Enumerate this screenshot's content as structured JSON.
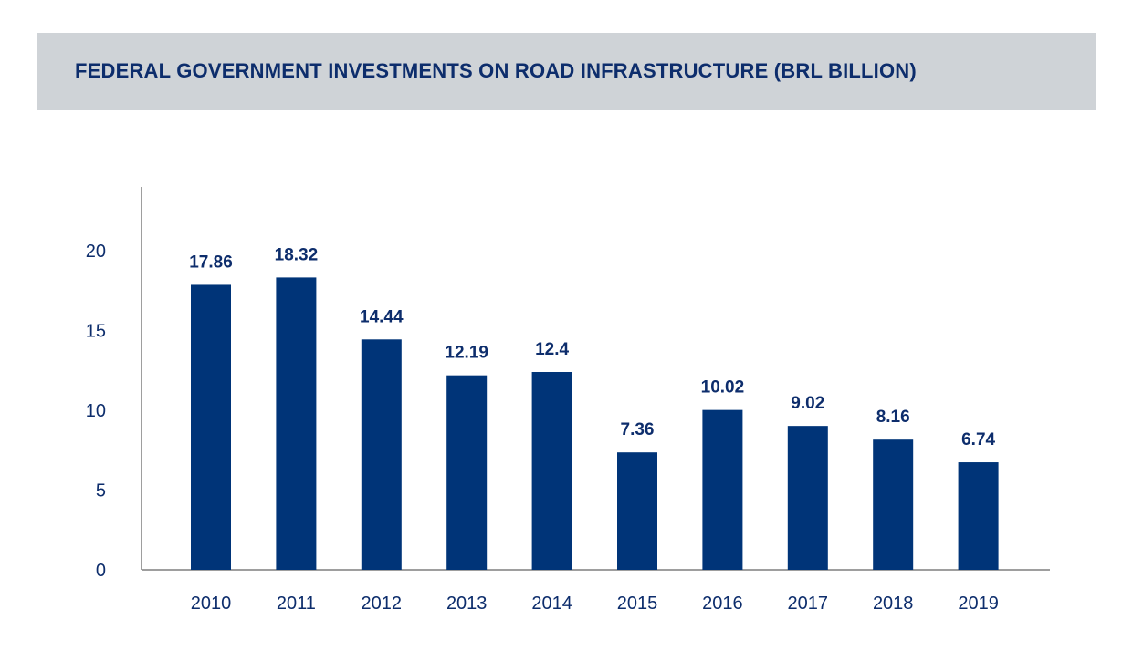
{
  "chart_data": {
    "type": "bar",
    "title": "FEDERAL GOVERNMENT INVESTMENTS ON ROAD INFRASTRUCTURE (BRL BILLION)",
    "xlabel": "",
    "ylabel": "",
    "categories": [
      "2010",
      "2011",
      "2012",
      "2013",
      "2014",
      "2015",
      "2016",
      "2017",
      "2018",
      "2019"
    ],
    "values": [
      17.86,
      18.32,
      14.44,
      12.19,
      12.4,
      7.36,
      10.02,
      9.02,
      8.16,
      6.74
    ],
    "value_labels": [
      "17.86",
      "18.32",
      "14.44",
      "12.19",
      "12.4",
      "7.36",
      "10.02",
      "9.02",
      "8.16",
      "6.74"
    ],
    "yticks": [
      0,
      5,
      10,
      15,
      20
    ],
    "ylim": [
      0,
      24
    ],
    "grid": false,
    "legend": "none"
  },
  "colors": {
    "bar": "#003478",
    "text": "#0d2d6c",
    "title_band": "#cfd3d7",
    "axis": "#7f7f7f"
  }
}
